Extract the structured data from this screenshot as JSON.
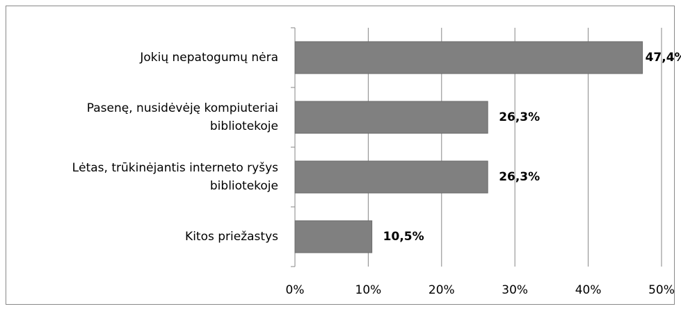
{
  "chart_data": {
    "type": "bar",
    "orientation": "horizontal",
    "categories": [
      "Jokių nepatogumų nėra",
      "Pasenę, nusidėvėję kompiuteriai\nbibliotekoje",
      "Lėtas, trūkinėjantis interneto ryšys\nbibliotekoje",
      "Kitos priežastys"
    ],
    "values": [
      47.4,
      26.3,
      26.3,
      10.5
    ],
    "value_labels": [
      "47,4%",
      "26,3%",
      "26,3%",
      "10,5%"
    ],
    "color": "#808080",
    "xlim": [
      0,
      50
    ],
    "xticks": [
      {
        "value": 0,
        "label": "0%"
      },
      {
        "value": 10,
        "label": "10%"
      },
      {
        "value": 20,
        "label": "20%"
      },
      {
        "value": 30,
        "label": "30%"
      },
      {
        "value": 40,
        "label": "40%"
      },
      {
        "value": 50,
        "label": "50%"
      }
    ],
    "grid": true
  }
}
